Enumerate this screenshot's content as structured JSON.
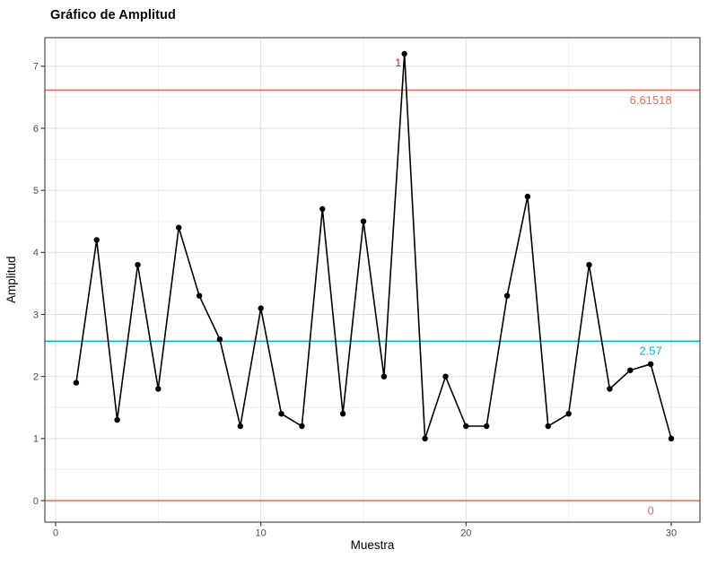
{
  "chart_data": {
    "type": "line",
    "title": "Gráfico de Amplitud",
    "xlabel": "Muestra",
    "ylabel": "Amplitud",
    "x": [
      1,
      2,
      3,
      4,
      5,
      6,
      7,
      8,
      9,
      10,
      11,
      12,
      13,
      14,
      15,
      16,
      17,
      18,
      19,
      20,
      21,
      22,
      23,
      24,
      25,
      26,
      27,
      28,
      29,
      30
    ],
    "values": [
      1.9,
      4.2,
      1.3,
      3.8,
      1.8,
      4.4,
      3.3,
      2.6,
      1.2,
      3.1,
      1.4,
      1.2,
      4.7,
      1.4,
      4.5,
      2.0,
      7.2,
      1.0,
      2.0,
      1.2,
      1.2,
      3.3,
      4.9,
      1.2,
      1.4,
      3.8,
      1.8,
      2.1,
      2.2,
      1.0
    ],
    "xlim": [
      -0.525,
      31.4
    ],
    "ylim": [
      -0.347,
      7.46
    ],
    "x_ticks": [
      0,
      10,
      20,
      30
    ],
    "x_minor": [
      5,
      15,
      25
    ],
    "y_ticks": [
      0,
      1,
      2,
      3,
      4,
      5,
      6,
      7
    ],
    "y_minor": [
      0.5,
      1.5,
      2.5,
      3.5,
      4.5,
      5.5,
      6.5
    ],
    "upper_limit": {
      "value": 6.61518,
      "label": "6.61518"
    },
    "center_line": {
      "value": 2.57,
      "label": "2.57"
    },
    "lower_limit": {
      "value": 0,
      "label": "0"
    },
    "violation": {
      "x": 17,
      "y": 7.2,
      "label": "1"
    },
    "legend": "none",
    "grid": "on",
    "colors": {
      "limit_line": "#F3685E",
      "center_line": "#00BFC4",
      "violation_label": "#FF0000",
      "series": "#000000",
      "grid_major": "#E2E2E2",
      "grid_minor": "#F0F0F0",
      "panel_border": "#4D4D4D",
      "tick_mark": "#333333",
      "tick_label": "#4D4D4D"
    }
  }
}
